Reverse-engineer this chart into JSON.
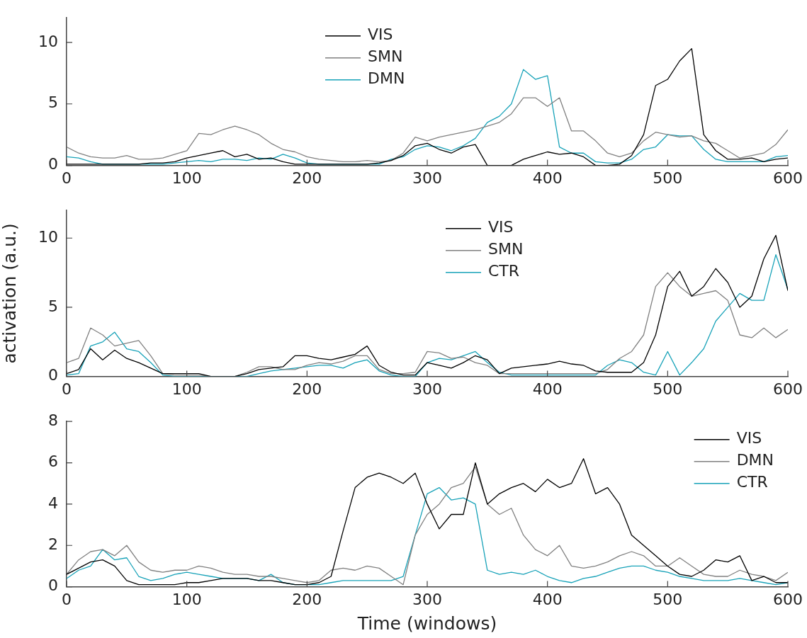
{
  "chart_data": [
    {
      "type": "line",
      "x": [
        0,
        10,
        20,
        30,
        40,
        50,
        60,
        70,
        80,
        90,
        100,
        110,
        120,
        130,
        140,
        150,
        160,
        170,
        180,
        190,
        200,
        210,
        220,
        230,
        240,
        250,
        260,
        270,
        280,
        290,
        300,
        310,
        320,
        330,
        340,
        350,
        360,
        370,
        380,
        390,
        400,
        410,
        420,
        430,
        440,
        450,
        460,
        470,
        480,
        490,
        500,
        510,
        520,
        530,
        540,
        550,
        560,
        570,
        580,
        590,
        600
      ],
      "xlim": [
        0,
        600
      ],
      "xticks": [
        0,
        100,
        200,
        300,
        400,
        500,
        600
      ],
      "ylim": [
        0,
        12
      ],
      "yticks": [
        0,
        5,
        10
      ],
      "grid": false,
      "legend": "top",
      "line_style": "solid",
      "marker": "none",
      "series": [
        {
          "name": "VIS",
          "color": "#000000",
          "values": [
            0.1,
            0.1,
            0.1,
            0.1,
            0.1,
            0.1,
            0.1,
            0.2,
            0.2,
            0.3,
            0.6,
            0.8,
            1.0,
            1.2,
            0.7,
            0.9,
            0.5,
            0.6,
            0.3,
            0.1,
            0.1,
            0.1,
            0.1,
            0.1,
            0.1,
            0.1,
            0.2,
            0.4,
            0.8,
            1.6,
            1.8,
            1.3,
            1.0,
            1.5,
            1.7,
            0.0,
            0.0,
            0.0,
            0.5,
            0.8,
            1.1,
            0.9,
            1.0,
            0.7,
            0.0,
            0.0,
            0.1,
            0.8,
            2.5,
            6.5,
            7.0,
            8.5,
            9.5,
            2.5,
            1.2,
            0.5,
            0.5,
            0.6,
            0.3,
            0.5,
            0.6
          ]
        },
        {
          "name": "SMN",
          "color": "#808080",
          "values": [
            1.5,
            1.0,
            0.7,
            0.6,
            0.6,
            0.8,
            0.5,
            0.5,
            0.6,
            0.9,
            1.2,
            2.6,
            2.5,
            2.9,
            3.2,
            2.9,
            2.5,
            1.8,
            1.3,
            1.1,
            0.7,
            0.5,
            0.4,
            0.3,
            0.3,
            0.4,
            0.3,
            0.4,
            1.0,
            2.3,
            2.0,
            2.3,
            2.5,
            2.7,
            2.9,
            3.2,
            3.5,
            4.2,
            5.5,
            5.5,
            4.8,
            5.5,
            2.8,
            2.8,
            2.0,
            1.0,
            0.7,
            1.0,
            2.0,
            2.7,
            2.5,
            2.3,
            2.4,
            2.0,
            1.8,
            1.2,
            0.6,
            0.8,
            1.0,
            1.7,
            2.9
          ]
        },
        {
          "name": "DMN",
          "color": "#17a2b8",
          "values": [
            0.7,
            0.6,
            0.3,
            0.1,
            0.1,
            0.1,
            0.1,
            0.1,
            0.1,
            0.2,
            0.3,
            0.4,
            0.3,
            0.5,
            0.5,
            0.4,
            0.6,
            0.5,
            0.9,
            0.6,
            0.2,
            0.1,
            0.1,
            0.1,
            0.1,
            0.1,
            0.1,
            0.5,
            0.7,
            1.3,
            1.6,
            1.5,
            1.2,
            1.6,
            2.2,
            3.5,
            4.0,
            5.0,
            7.8,
            7.0,
            7.3,
            1.5,
            1.0,
            1.0,
            0.3,
            0.2,
            0.2,
            0.5,
            1.3,
            1.5,
            2.5,
            2.4,
            2.4,
            1.3,
            0.5,
            0.3,
            0.3,
            0.3,
            0.3,
            0.7,
            0.8
          ]
        }
      ]
    },
    {
      "type": "line",
      "ylabel": "activation (a.u.)",
      "x": [
        0,
        10,
        20,
        30,
        40,
        50,
        60,
        70,
        80,
        90,
        100,
        110,
        120,
        130,
        140,
        150,
        160,
        170,
        180,
        190,
        200,
        210,
        220,
        230,
        240,
        250,
        260,
        270,
        280,
        290,
        300,
        310,
        320,
        330,
        340,
        350,
        360,
        370,
        380,
        390,
        400,
        410,
        420,
        430,
        440,
        450,
        460,
        470,
        480,
        490,
        500,
        510,
        520,
        530,
        540,
        550,
        560,
        570,
        580,
        590,
        600
      ],
      "xlim": [
        0,
        600
      ],
      "xticks": [
        0,
        100,
        200,
        300,
        400,
        500,
        600
      ],
      "ylim": [
        0,
        12
      ],
      "yticks": [
        0,
        5,
        10
      ],
      "grid": false,
      "legend": "top",
      "line_style": "solid",
      "marker": "none",
      "series": [
        {
          "name": "VIS",
          "color": "#000000",
          "values": [
            0.2,
            0.5,
            2.0,
            1.2,
            1.9,
            1.3,
            1.0,
            0.6,
            0.2,
            0.2,
            0.2,
            0.2,
            0.0,
            0.0,
            0.0,
            0.2,
            0.5,
            0.6,
            0.7,
            1.5,
            1.5,
            1.3,
            1.2,
            1.4,
            1.6,
            2.2,
            0.8,
            0.3,
            0.1,
            0.1,
            1.0,
            0.8,
            0.6,
            1.0,
            1.5,
            1.2,
            0.2,
            0.6,
            0.7,
            0.8,
            0.9,
            1.1,
            0.9,
            0.8,
            0.4,
            0.3,
            0.3,
            0.3,
            1.0,
            3.0,
            6.5,
            7.6,
            5.8,
            6.5,
            7.8,
            6.8,
            5.0,
            5.8,
            8.5,
            10.2,
            6.2
          ]
        },
        {
          "name": "SMN",
          "color": "#808080",
          "values": [
            1.0,
            1.3,
            3.5,
            3.0,
            2.2,
            2.4,
            2.6,
            1.5,
            0.2,
            0.1,
            0.1,
            0.1,
            0.0,
            0.0,
            0.0,
            0.3,
            0.7,
            0.7,
            0.5,
            0.5,
            0.8,
            1.0,
            0.9,
            1.1,
            1.5,
            1.5,
            0.5,
            0.2,
            0.2,
            0.3,
            1.8,
            1.7,
            1.3,
            1.4,
            1.0,
            0.8,
            0.2,
            0.2,
            0.2,
            0.2,
            0.2,
            0.2,
            0.2,
            0.2,
            0.2,
            0.5,
            1.3,
            1.8,
            3.0,
            6.5,
            7.5,
            6.5,
            5.8,
            6.0,
            6.2,
            5.5,
            3.0,
            2.8,
            3.5,
            2.8,
            3.4
          ]
        },
        {
          "name": "CTR",
          "color": "#17a2b8",
          "values": [
            0.1,
            0.2,
            2.2,
            2.5,
            3.2,
            2.0,
            1.8,
            1.0,
            0.1,
            0.0,
            0.0,
            0.0,
            0.0,
            0.0,
            0.0,
            0.0,
            0.2,
            0.4,
            0.5,
            0.6,
            0.7,
            0.8,
            0.8,
            0.6,
            1.0,
            1.2,
            0.4,
            0.1,
            0.0,
            0.0,
            1.0,
            1.3,
            1.2,
            1.5,
            1.8,
            1.0,
            0.3,
            0.1,
            0.1,
            0.1,
            0.1,
            0.1,
            0.1,
            0.1,
            0.1,
            0.8,
            1.2,
            1.0,
            0.3,
            0.1,
            1.8,
            0.1,
            1.0,
            2.0,
            4.0,
            5.0,
            6.0,
            5.5,
            5.5,
            8.8,
            6.3
          ]
        }
      ]
    },
    {
      "type": "line",
      "xlabel": "Time (windows)",
      "x": [
        0,
        10,
        20,
        30,
        40,
        50,
        60,
        70,
        80,
        90,
        100,
        110,
        120,
        130,
        140,
        150,
        160,
        170,
        180,
        190,
        200,
        210,
        220,
        230,
        240,
        250,
        260,
        270,
        280,
        290,
        300,
        310,
        320,
        330,
        340,
        350,
        360,
        370,
        380,
        390,
        400,
        410,
        420,
        430,
        440,
        450,
        460,
        470,
        480,
        490,
        500,
        510,
        520,
        530,
        540,
        550,
        560,
        570,
        580,
        590,
        600
      ],
      "xlim": [
        0,
        600
      ],
      "xticks": [
        0,
        100,
        200,
        300,
        400,
        500,
        600
      ],
      "ylim": [
        0,
        8
      ],
      "yticks": [
        0,
        2,
        4,
        6,
        8
      ],
      "grid": false,
      "legend": "top right",
      "line_style": "solid",
      "marker": "none",
      "series": [
        {
          "name": "VIS",
          "color": "#000000",
          "values": [
            0.6,
            0.9,
            1.2,
            1.3,
            1.0,
            0.3,
            0.1,
            0.1,
            0.1,
            0.1,
            0.2,
            0.2,
            0.3,
            0.4,
            0.4,
            0.4,
            0.3,
            0.3,
            0.2,
            0.1,
            0.1,
            0.2,
            0.5,
            2.7,
            4.8,
            5.3,
            5.5,
            5.3,
            5.0,
            5.5,
            4.0,
            2.8,
            3.5,
            3.5,
            6.0,
            4.0,
            4.5,
            4.8,
            5.0,
            4.6,
            5.2,
            4.8,
            5.0,
            6.2,
            4.5,
            4.8,
            4.0,
            2.5,
            2.0,
            1.5,
            1.0,
            0.6,
            0.5,
            0.8,
            1.3,
            1.2,
            1.5,
            0.3,
            0.5,
            0.2,
            0.2
          ]
        },
        {
          "name": "DMN",
          "color": "#808080",
          "values": [
            0.6,
            1.3,
            1.7,
            1.8,
            1.5,
            2.0,
            1.2,
            0.8,
            0.7,
            0.8,
            0.8,
            1.0,
            0.9,
            0.7,
            0.6,
            0.6,
            0.5,
            0.5,
            0.4,
            0.3,
            0.2,
            0.3,
            0.8,
            0.9,
            0.8,
            1.0,
            0.9,
            0.5,
            0.1,
            2.5,
            3.5,
            4.0,
            4.8,
            5.0,
            5.8,
            4.0,
            3.5,
            3.8,
            2.5,
            1.8,
            1.5,
            2.0,
            1.0,
            0.9,
            1.0,
            1.2,
            1.5,
            1.7,
            1.5,
            1.0,
            1.0,
            1.4,
            1.0,
            0.6,
            0.5,
            0.5,
            0.8,
            0.6,
            0.5,
            0.3,
            0.7
          ]
        },
        {
          "name": "CTR",
          "color": "#17a2b8",
          "values": [
            0.4,
            0.8,
            1.0,
            1.8,
            1.3,
            1.4,
            0.5,
            0.3,
            0.4,
            0.6,
            0.7,
            0.6,
            0.5,
            0.4,
            0.4,
            0.4,
            0.3,
            0.6,
            0.2,
            0.1,
            0.1,
            0.1,
            0.2,
            0.3,
            0.3,
            0.3,
            0.3,
            0.3,
            0.5,
            2.5,
            4.5,
            4.8,
            4.2,
            4.3,
            4.0,
            0.8,
            0.6,
            0.7,
            0.6,
            0.8,
            0.5,
            0.3,
            0.2,
            0.4,
            0.5,
            0.7,
            0.9,
            1.0,
            1.0,
            0.8,
            0.7,
            0.5,
            0.4,
            0.3,
            0.3,
            0.3,
            0.4,
            0.3,
            0.2,
            0.1,
            0.2
          ]
        }
      ]
    }
  ]
}
